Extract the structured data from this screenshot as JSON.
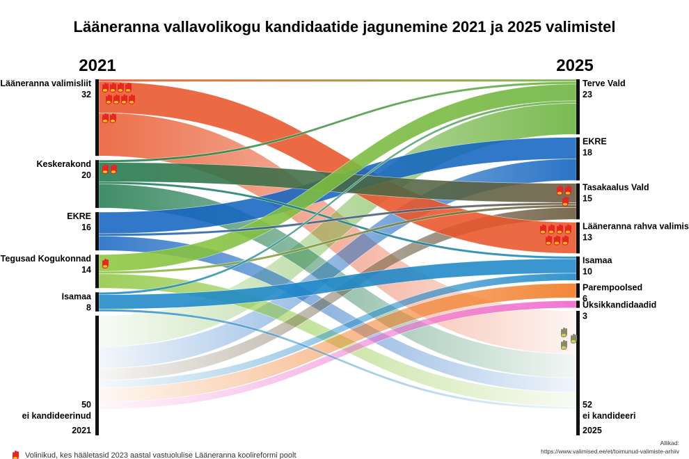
{
  "title": "Lääneranna vallavolikogu kandidaatide jagunemine 2021 ja 2025 valimistel",
  "year_left": "2021",
  "year_right": "2025",
  "left_nodes": [
    {
      "id": "L0",
      "name": "Lääneranna valimisliit",
      "count": 32,
      "color": "#e8562a",
      "hands": 10
    },
    {
      "id": "L1",
      "name": "Keskerakond",
      "count": 20,
      "color": "#1f7a4d",
      "hands": 2
    },
    {
      "id": "L2",
      "name": "EKRE",
      "count": 16,
      "color": "#1565c0",
      "hands": 0
    },
    {
      "id": "L3",
      "name": "Tegusad Kogukonnad",
      "count": 14,
      "color": "#8dc63f",
      "hands": 1
    },
    {
      "id": "L4",
      "name": "Isamaa",
      "count": 8,
      "color": "#1e88c8",
      "hands": 0
    },
    {
      "id": "L5",
      "name": "ei kandideerinud",
      "count": 50,
      "color": "#111111",
      "hands": 0,
      "year": "2021"
    }
  ],
  "right_nodes": [
    {
      "id": "R0",
      "name": "Terve Vald",
      "count": 23,
      "color": "#6db33f",
      "hands": 0
    },
    {
      "id": "R1",
      "name": "EKRE",
      "count": 18,
      "color": "#1565c0",
      "hands": 0
    },
    {
      "id": "R2",
      "name": "Tasakaalus Vald",
      "count": 15,
      "color": "#6b5a3e",
      "hands": 3
    },
    {
      "id": "R3",
      "name": "Lääneranna rahva valimisliit",
      "count": 13,
      "color": "#e8562a",
      "hands": 7
    },
    {
      "id": "R4",
      "name": "Isamaa",
      "count": 10,
      "color": "#1e88c8",
      "hands": 0
    },
    {
      "id": "R5",
      "name": "Parempoolsed",
      "count": 6,
      "color": "#f07a22",
      "hands": 0
    },
    {
      "id": "R6",
      "name": "Üksikkandidaadid",
      "count": 3,
      "color": "#ee66cc",
      "hands": 0
    },
    {
      "id": "R7",
      "name": "ei kandideeri",
      "count": 52,
      "color": "#111111",
      "hands": 3,
      "year": "2025"
    }
  ],
  "flows": [
    {
      "from": "L0",
      "to": "R3",
      "value": 13
    },
    {
      "from": "L0",
      "to": "R0",
      "value": 1
    },
    {
      "from": "L0",
      "to": "R7",
      "value": 18
    },
    {
      "from": "L1",
      "to": "R0",
      "value": 1
    },
    {
      "from": "L1",
      "to": "R2",
      "value": 8
    },
    {
      "from": "L1",
      "to": "R4",
      "value": 1
    },
    {
      "from": "L1",
      "to": "R7",
      "value": 10
    },
    {
      "from": "L2",
      "to": "R1",
      "value": 9
    },
    {
      "from": "L2",
      "to": "R2",
      "value": 1
    },
    {
      "from": "L2",
      "to": "R7",
      "value": 6
    },
    {
      "from": "L3",
      "to": "R0",
      "value": 7
    },
    {
      "from": "L3",
      "to": "R2",
      "value": 1
    },
    {
      "from": "L3",
      "to": "R7",
      "value": 6
    },
    {
      "from": "L4",
      "to": "R0",
      "value": 1
    },
    {
      "from": "L4",
      "to": "R4",
      "value": 6
    },
    {
      "from": "L4",
      "to": "R7",
      "value": 1
    },
    {
      "from": "L5",
      "to": "R0",
      "value": 13
    },
    {
      "from": "L5",
      "to": "R1",
      "value": 9
    },
    {
      "from": "L5",
      "to": "R2",
      "value": 5
    },
    {
      "from": "L5",
      "to": "R4",
      "value": 3
    },
    {
      "from": "L5",
      "to": "R5",
      "value": 6
    },
    {
      "from": "L5",
      "to": "R6",
      "value": 3
    }
  ],
  "footer": {
    "legend": "Volinikud, kes hääletasid 2023 aastal vastuolulise Lääneranna koolireformi poolt",
    "sources_label": "Allikad:",
    "sources": [
      "https://www.valimised.ee/et/toimunud-valimiste-arhiiv"
    ]
  },
  "colors": {
    "hand": "#e8251e",
    "hand_accent": "#f5c21a",
    "hand_grey": "#8a8a6a"
  }
}
